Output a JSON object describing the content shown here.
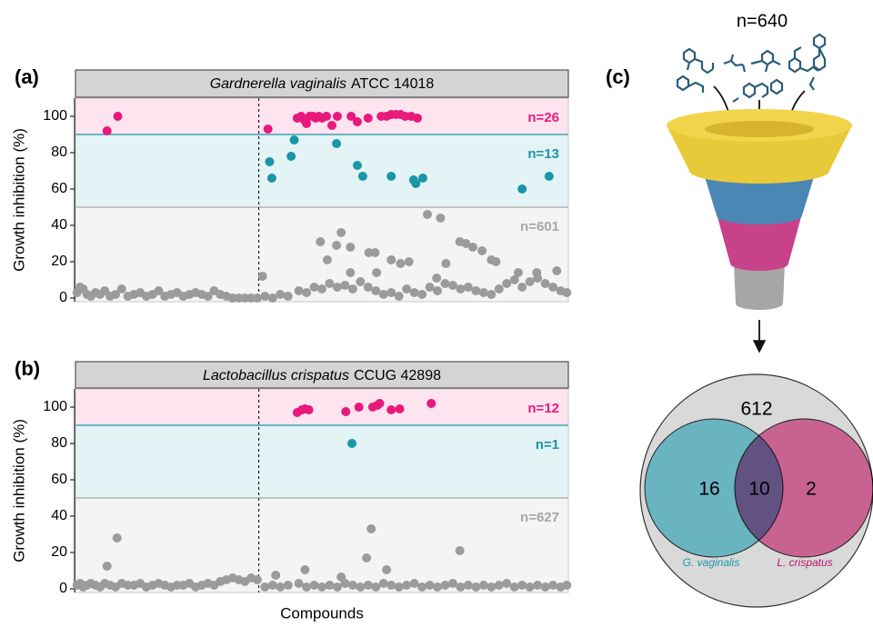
{
  "chart_data": [
    {
      "type": "scatter",
      "panel_label": "(a)",
      "title_species": "Gardnerella vaginalis",
      "title_strain": "ATCC 14018",
      "y_label": "Growth inhibition (%)",
      "xlim": [
        0,
        640
      ],
      "ylim": [
        -2,
        110
      ],
      "yticks": [
        0,
        20,
        40,
        60,
        80,
        100
      ],
      "divider_x": 238,
      "bands": [
        {
          "from": 90,
          "to": 110,
          "label": "n=26",
          "color": "#e8197c",
          "fill": "#fde4ef"
        },
        {
          "from": 50,
          "to": 90,
          "label": "n=13",
          "color": "#1a96a8",
          "fill": "#e4f3f5"
        },
        {
          "from": -2,
          "to": 50,
          "label": "n=601",
          "color": "#a6a6a6",
          "fill": "#f4f4f4"
        }
      ],
      "series": [
        {
          "color": "#9b9b9b",
          "x": [
            2,
            6,
            10,
            15,
            20,
            26,
            32,
            38,
            45,
            52,
            60,
            68,
            76,
            84,
            92,
            100,
            108,
            116,
            124,
            132,
            140,
            148,
            156,
            164,
            172,
            180,
            188,
            196,
            204,
            212,
            220,
            228,
            236,
            246,
            256,
            266,
            276,
            290,
            300,
            310,
            320,
            330,
            340,
            350,
            360,
            370,
            380,
            390,
            400,
            410,
            420,
            430,
            440,
            450,
            460,
            470,
            480,
            490,
            500,
            510,
            520,
            530,
            540,
            550,
            560,
            570,
            580,
            590,
            600,
            610,
            620,
            630,
            638,
            243,
            318,
            327,
            339,
            345,
            357,
            357,
            381,
            389,
            391,
            410,
            422,
            433,
            457,
            469,
            474,
            481,
            499,
            507,
            516,
            528,
            540,
            546,
            575,
            599,
            625
          ],
          "values": [
            3,
            6,
            5,
            2,
            1,
            3,
            2,
            4,
            1,
            2,
            5,
            1,
            2,
            3,
            1,
            2,
            4,
            1,
            2,
            3,
            1,
            2,
            3,
            2,
            1,
            4,
            2,
            1,
            0,
            0,
            0,
            0,
            0,
            1,
            0,
            2,
            1,
            4,
            3,
            6,
            5,
            8,
            6,
            7,
            5,
            9,
            6,
            4,
            2,
            3,
            1,
            5,
            3,
            2,
            6,
            4,
            8,
            7,
            5,
            6,
            4,
            3,
            2,
            5,
            8,
            10,
            6,
            9,
            11,
            8,
            6,
            4,
            3,
            12,
            31,
            21,
            29,
            36,
            28,
            14,
            25,
            25,
            14,
            21,
            19,
            20,
            46,
            11,
            44,
            19,
            31,
            30,
            28,
            26,
            21,
            20,
            14,
            14,
            15
          ]
        },
        {
          "color": "#1a96a8",
          "x": [
            252,
            255,
            280,
            284,
            339,
            366,
            373,
            410,
            439,
            442,
            451,
            580,
            615
          ],
          "values": [
            75,
            66,
            78,
            87,
            85,
            73,
            67,
            67,
            65,
            63,
            66,
            60,
            67
          ]
        },
        {
          "color": "#e8197c",
          "x": [
            41,
            55,
            250,
            288,
            293,
            297,
            300,
            304,
            308,
            312,
            316,
            320,
            326,
            333,
            340,
            358,
            366,
            380,
            397,
            404,
            410,
            416,
            422,
            428,
            436,
            444
          ],
          "values": [
            92,
            100,
            93,
            99,
            100,
            98,
            96,
            100,
            100,
            99,
            100,
            99,
            100,
            95,
            100,
            100,
            97,
            99,
            100,
            100,
            101,
            101,
            101,
            100,
            100,
            99
          ]
        }
      ]
    },
    {
      "type": "scatter",
      "panel_label": "(b)",
      "title_species": "Lactobacillus crispatus",
      "title_strain": "CCUG 42898",
      "y_label": "Growth inhibition (%)",
      "x_label": "Compounds",
      "xlim": [
        0,
        640
      ],
      "ylim": [
        -2,
        110
      ],
      "yticks": [
        0,
        20,
        40,
        60,
        80,
        100
      ],
      "divider_x": 238,
      "bands": [
        {
          "from": 90,
          "to": 110,
          "label": "n=12",
          "color": "#e8197c",
          "fill": "#fde4ef"
        },
        {
          "from": 50,
          "to": 90,
          "label": "n=1",
          "color": "#1a96a8",
          "fill": "#e4f3f5"
        },
        {
          "from": -2,
          "to": 50,
          "label": "n=627",
          "color": "#a6a6a6",
          "fill": "#f4f4f4"
        }
      ],
      "series": [
        {
          "color": "#9b9b9b",
          "x": [
            2,
            6,
            10,
            15,
            20,
            26,
            32,
            38,
            45,
            52,
            60,
            68,
            76,
            84,
            92,
            100,
            108,
            116,
            124,
            132,
            140,
            148,
            156,
            164,
            172,
            180,
            188,
            196,
            204,
            212,
            220,
            228,
            236,
            246,
            256,
            266,
            276,
            290,
            300,
            310,
            320,
            330,
            340,
            350,
            360,
            370,
            380,
            390,
            400,
            410,
            420,
            430,
            440,
            450,
            460,
            470,
            480,
            490,
            500,
            510,
            520,
            530,
            540,
            550,
            560,
            570,
            580,
            590,
            600,
            610,
            620,
            630,
            638,
            41,
            54,
            260,
            298,
            345,
            378,
            384,
            404,
            499
          ],
          "values": [
            2,
            3,
            1,
            2,
            3,
            2,
            1,
            3,
            2,
            1,
            3,
            2,
            2,
            3,
            1,
            2,
            3,
            2,
            1,
            2,
            2,
            3,
            1,
            2,
            3,
            2,
            4,
            5,
            6,
            5,
            4,
            6,
            5,
            1,
            2,
            1,
            2,
            3,
            1,
            2,
            1,
            2,
            1,
            3,
            2,
            1,
            2,
            1,
            3,
            2,
            1,
            2,
            3,
            1,
            2,
            1,
            2,
            3,
            1,
            2,
            1,
            2,
            1,
            2,
            3,
            1,
            2,
            1,
            2,
            1,
            2,
            1,
            2,
            12.5,
            28,
            7.5,
            10.5,
            6.5,
            17,
            33,
            10.5,
            21
          ]
        },
        {
          "color": "#1a96a8",
          "x": [
            359
          ],
          "values": [
            80
          ]
        },
        {
          "color": "#e8197c",
          "x": [
            288,
            294,
            298,
            303,
            351,
            368,
            386,
            392,
            395,
            410,
            421,
            462
          ],
          "values": [
            97,
            98.5,
            99,
            98.5,
            97.5,
            100,
            100,
            101,
            102,
            98.5,
            99,
            102
          ]
        }
      ]
    }
  ],
  "diagram": {
    "panel_label": "(c)",
    "total_label": "n=640",
    "venn": {
      "outside": "612",
      "left_only": "16",
      "both": "10",
      "right_only": "2",
      "left_label": "G. vaginalis",
      "right_label": "L. crispatus"
    }
  }
}
